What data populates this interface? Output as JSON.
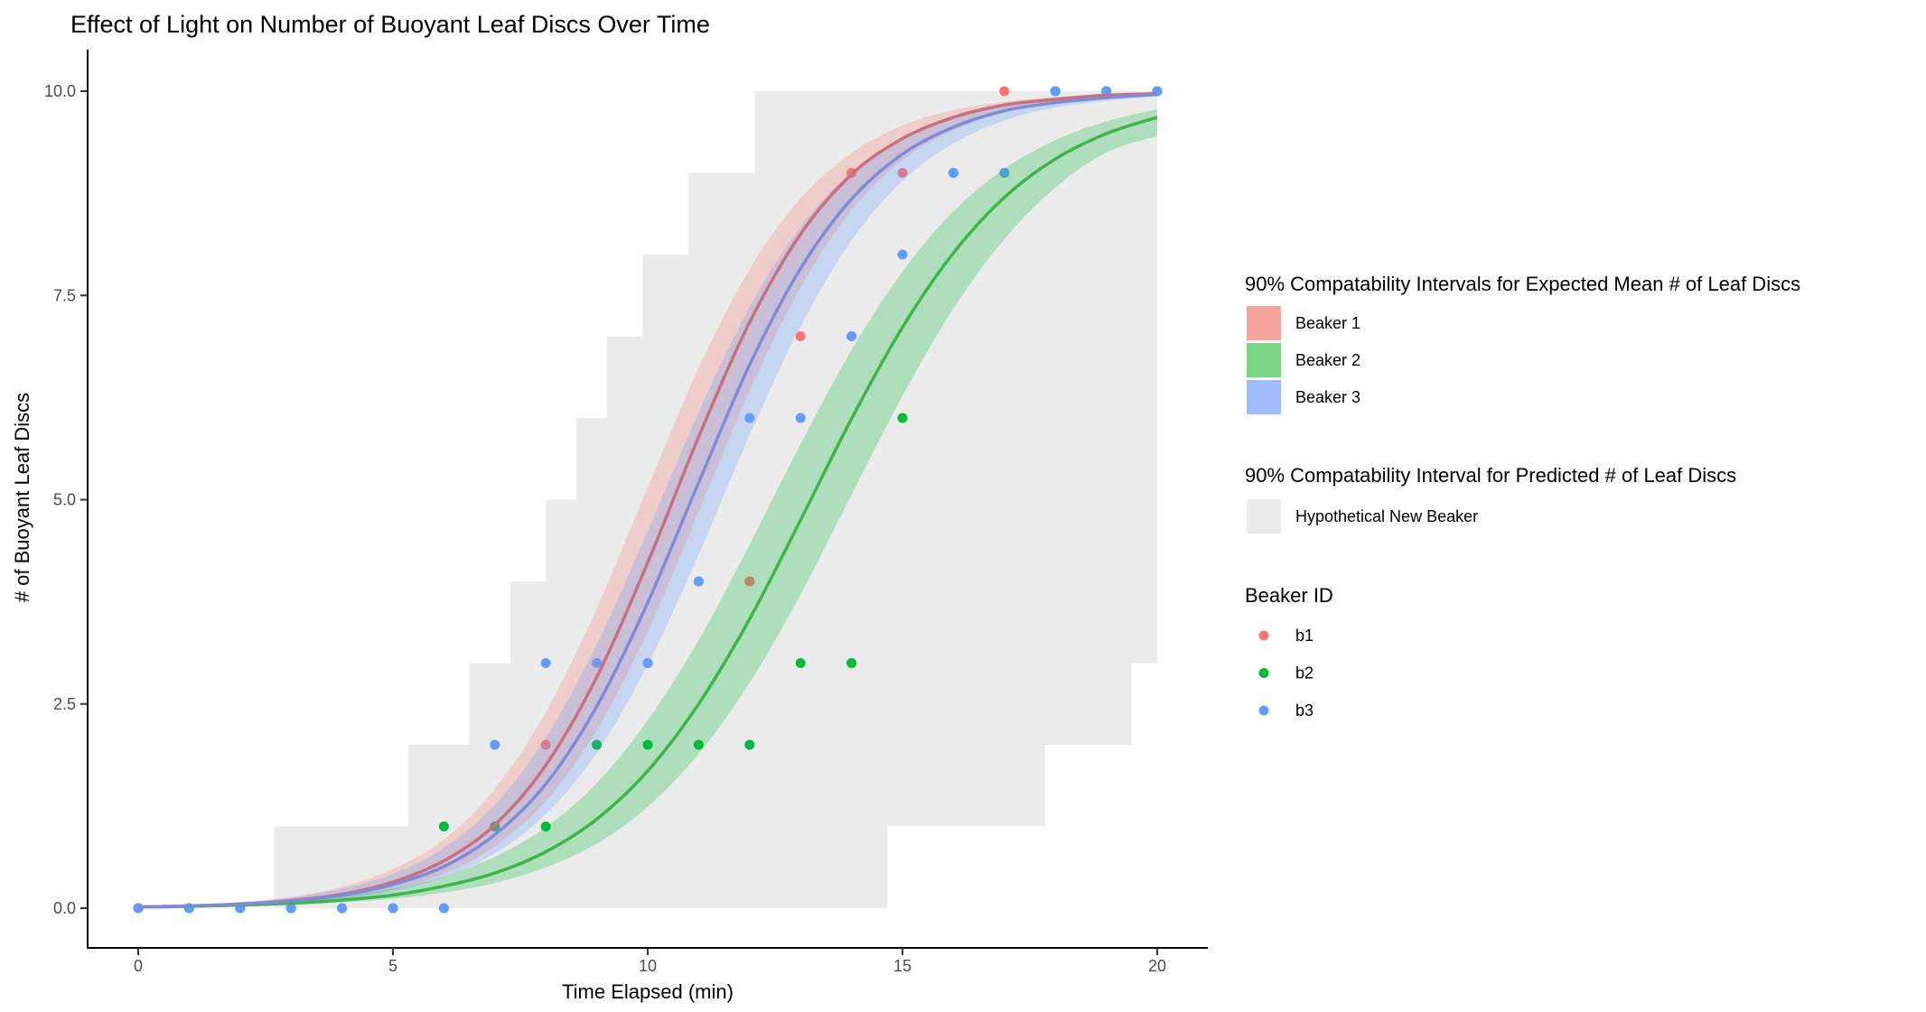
{
  "chart_data": {
    "type": "scatter",
    "title": "Effect of Light on Number of Buoyant Leaf Discs Over Time",
    "xlabel": "Time Elapsed (min)",
    "ylabel": "# of Buoyant Leaf Discs",
    "xlim": [
      0,
      20
    ],
    "ylim": [
      0,
      10
    ],
    "xticks": [
      0,
      5,
      10,
      15,
      20
    ],
    "xtick_labels": [
      "0",
      "5",
      "10",
      "15",
      "20"
    ],
    "yticks": [
      0,
      2.5,
      5,
      7.5,
      10
    ],
    "ytick_labels": [
      "0.0",
      "2.5",
      "5.0",
      "7.5",
      "10.0"
    ],
    "grid": false,
    "legend_placement": "right",
    "x": [
      0,
      1,
      2,
      3,
      4,
      5,
      6,
      7,
      8,
      9,
      10,
      11,
      12,
      13,
      14,
      15,
      16,
      17,
      18,
      19,
      20
    ],
    "points": [
      {
        "name": "b1",
        "color": "#F8766D",
        "values": [
          0,
          0,
          0,
          0,
          0,
          0,
          0,
          1,
          2,
          2,
          3,
          4,
          4,
          7,
          9,
          9,
          9,
          10,
          10,
          10,
          10
        ]
      },
      {
        "name": "b2",
        "color": "#00BA38",
        "values": [
          0,
          0,
          0,
          0,
          0,
          0,
          1,
          1,
          1,
          2,
          2,
          2,
          2,
          3,
          3,
          6,
          9,
          9,
          10,
          10,
          10
        ]
      },
      {
        "name": "b3",
        "color": "#619CFF",
        "values": [
          0,
          0,
          0,
          0,
          0,
          0,
          0,
          2,
          3,
          3,
          3,
          4,
          6,
          6,
          7,
          8,
          9,
          9,
          10,
          10,
          10
        ]
      }
    ],
    "expected_mean": [
      {
        "name": "Beaker 1",
        "fill": "#F8766D",
        "line": "#C8707F",
        "mean": [
          0.015,
          0.028,
          0.051,
          0.094,
          0.17,
          0.32,
          0.58,
          1.02,
          1.75,
          2.83,
          4.23,
          5.77,
          7.17,
          8.25,
          8.98,
          9.42,
          9.68,
          9.83,
          9.9,
          9.95,
          9.97
        ],
        "lower": [
          0.01,
          0.02,
          0.037,
          0.069,
          0.12,
          0.23,
          0.42,
          0.76,
          1.31,
          2.18,
          3.39,
          4.85,
          6.33,
          7.6,
          8.54,
          9.16,
          9.52,
          9.74,
          9.86,
          9.92,
          9.96
        ],
        "upper": [
          0.023,
          0.042,
          0.076,
          0.14,
          0.26,
          0.48,
          0.84,
          1.46,
          2.4,
          3.67,
          5.15,
          6.61,
          7.82,
          8.69,
          9.24,
          9.58,
          9.77,
          9.87,
          9.93,
          9.96,
          9.99
        ]
      },
      {
        "name": "Beaker 2",
        "fill": "#00BA38",
        "line": "#3DB54A",
        "mean": [
          0.014,
          0.022,
          0.037,
          0.061,
          0.1,
          0.16,
          0.27,
          0.43,
          0.69,
          1.09,
          1.68,
          2.5,
          3.54,
          4.75,
          5.99,
          7.11,
          8.02,
          8.7,
          9.17,
          9.48,
          9.68
        ],
        "lower": [
          0.01,
          0.016,
          0.026,
          0.043,
          0.071,
          0.115,
          0.19,
          0.31,
          0.5,
          0.79,
          1.24,
          1.89,
          2.76,
          3.84,
          5.06,
          6.27,
          7.34,
          8.19,
          8.82,
          9.25,
          9.45
        ],
        "upper": [
          0.02,
          0.033,
          0.055,
          0.09,
          0.145,
          0.24,
          0.39,
          0.63,
          0.99,
          1.53,
          2.3,
          3.28,
          4.45,
          5.68,
          6.83,
          7.79,
          8.53,
          9.05,
          9.4,
          9.63,
          9.78
        ]
      },
      {
        "name": "Beaker 3",
        "fill": "#619CFF",
        "line": "#7F8AD8",
        "mean": [
          0.015,
          0.027,
          0.049,
          0.089,
          0.16,
          0.29,
          0.51,
          0.9,
          1.52,
          2.47,
          3.74,
          5.21,
          6.65,
          7.83,
          8.68,
          9.23,
          9.56,
          9.76,
          9.86,
          9.92,
          9.96
        ],
        "lower": [
          0.01,
          0.02,
          0.036,
          0.065,
          0.12,
          0.21,
          0.38,
          0.67,
          1.15,
          1.9,
          2.98,
          4.33,
          5.79,
          7.12,
          8.17,
          8.9,
          9.36,
          9.64,
          9.8,
          9.88,
          9.94
        ],
        "upper": [
          0.022,
          0.04,
          0.073,
          0.13,
          0.24,
          0.42,
          0.74,
          1.27,
          2.09,
          3.23,
          4.62,
          6.07,
          7.36,
          8.34,
          9.01,
          9.43,
          9.68,
          9.82,
          9.9,
          9.94,
          9.98
        ]
      }
    ],
    "prediction_interval": {
      "name": "Hypothetical New Beaker",
      "fill": "#EBEBEB",
      "upper_steps": [
        [
          0,
          0
        ],
        [
          2.67,
          1
        ],
        [
          5.3,
          2
        ],
        [
          6.5,
          3
        ],
        [
          7.3,
          4
        ],
        [
          8.0,
          5
        ],
        [
          8.6,
          6
        ],
        [
          9.2,
          7
        ],
        [
          9.9,
          8
        ],
        [
          10.8,
          9
        ],
        [
          12.1,
          10
        ]
      ],
      "lower_steps": [
        [
          0,
          0
        ],
        [
          14.7,
          1
        ],
        [
          17.8,
          2
        ],
        [
          19.5,
          3
        ]
      ]
    }
  },
  "legend": {
    "mean_title": "90% Compatability Intervals for Expected Mean # of Leaf Discs",
    "mean_items": [
      {
        "label": "Beaker 1",
        "color": "#F8A49E"
      },
      {
        "label": "Beaker 2",
        "color": "#7AD487"
      },
      {
        "label": "Beaker 3",
        "color": "#9FBCFF"
      }
    ],
    "pred_title": "90% Compatability Interval for Predicted # of Leaf Discs",
    "pred_items": [
      {
        "label": "Hypothetical New Beaker",
        "color": "#EBEBEB"
      }
    ],
    "id_title": "Beaker ID",
    "id_items": [
      {
        "label": "b1",
        "color": "#F8766D"
      },
      {
        "label": "b2",
        "color": "#00BA38"
      },
      {
        "label": "b3",
        "color": "#619CFF"
      }
    ]
  }
}
